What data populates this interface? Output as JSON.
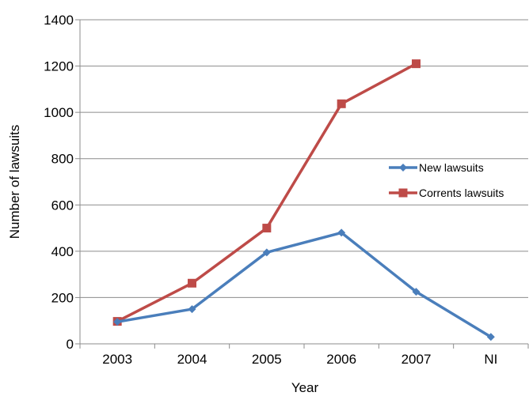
{
  "chart_data": {
    "type": "line",
    "categories": [
      "2003",
      "2004",
      "2005",
      "2006",
      "2007",
      "NI"
    ],
    "series": [
      {
        "name": "New lawsuits",
        "values": [
          95,
          150,
          395,
          480,
          225,
          30
        ],
        "color": "#4a7ebb",
        "marker": "diamond"
      },
      {
        "name": "Corrents lawsuits",
        "values": [
          97,
          262,
          500,
          1037,
          1210,
          null
        ],
        "color": "#be4b48",
        "marker": "square"
      }
    ],
    "title": "",
    "xlabel": "Year",
    "ylabel": "Number of lawsuits",
    "ylim": [
      0,
      1400
    ],
    "yticks": [
      0,
      200,
      400,
      600,
      800,
      1000,
      1200,
      1400
    ],
    "grid": true,
    "legend_position": "right"
  }
}
